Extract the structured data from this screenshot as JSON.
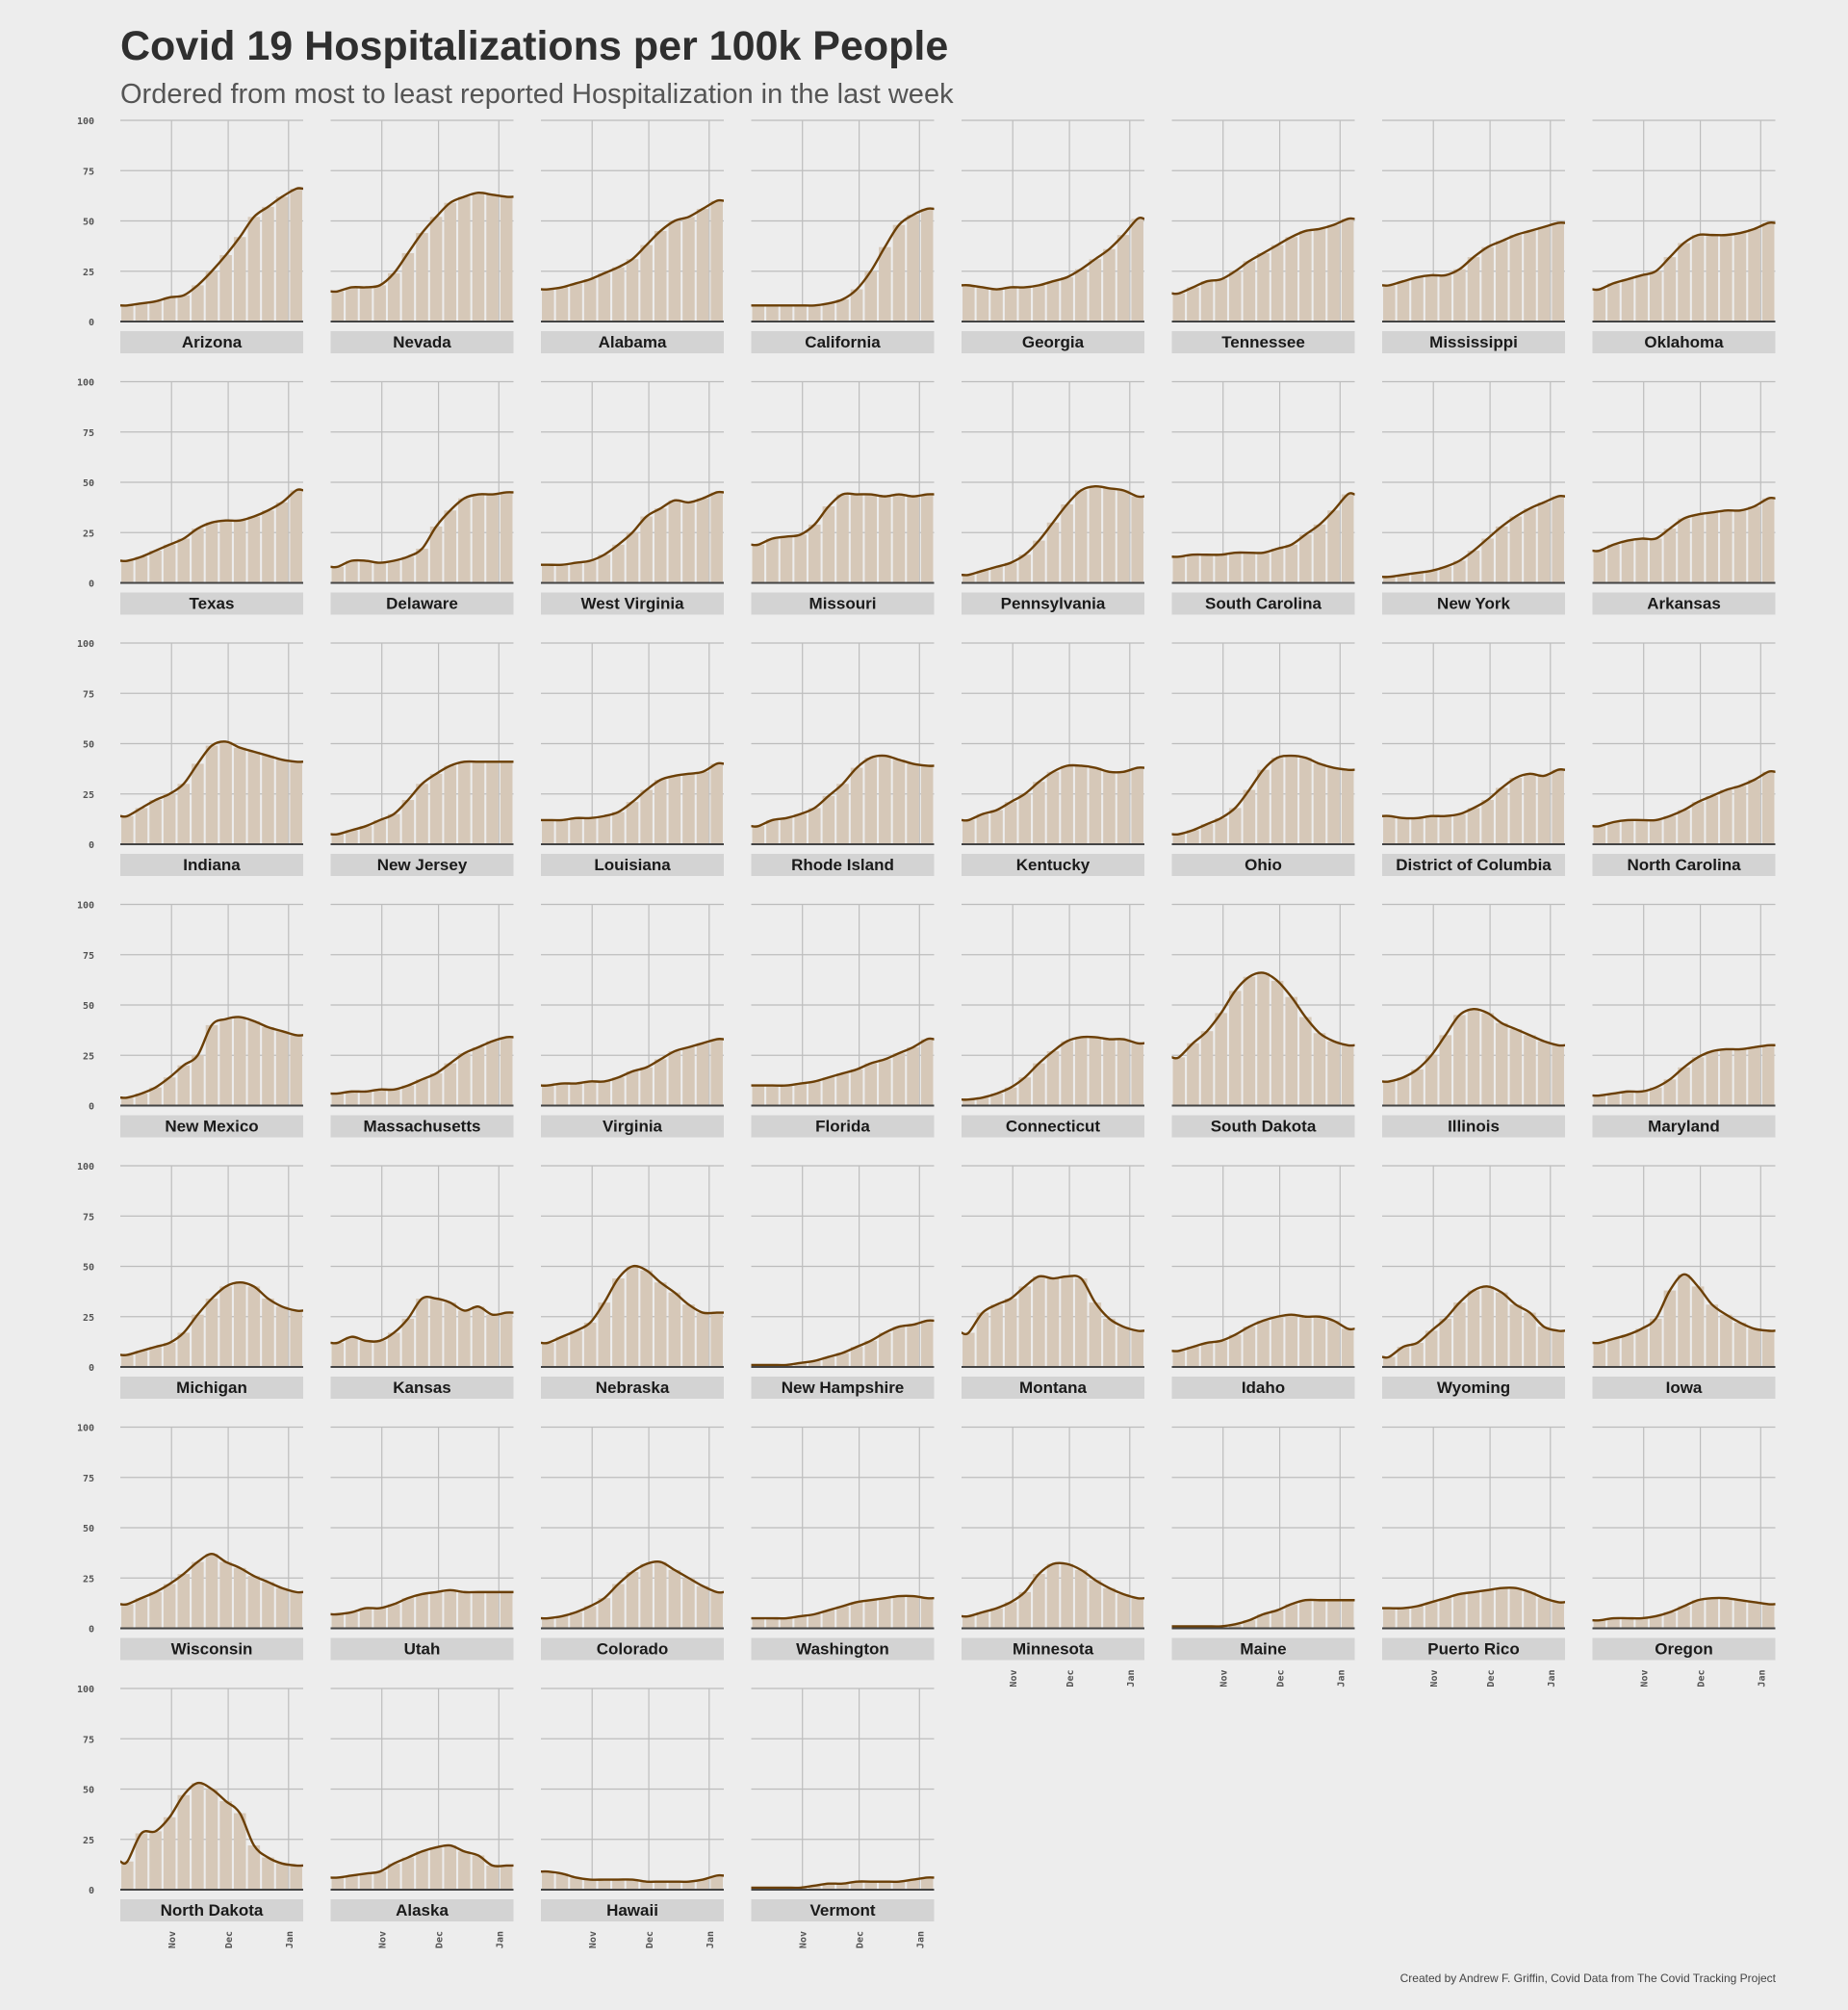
{
  "title": "Covid 19 Hospitalizations per 100k People",
  "subtitle": "Ordered from most to least reported Hospitalization in the last week",
  "caption": "Created by Andrew F. Griffin, Covid Data from The Covid Tracking Project",
  "colors": {
    "background": "#ededed",
    "bar": "#d6c8b8",
    "line": "#6b3f06",
    "grid": "#bdbdbd",
    "strip": "#d3d3d3",
    "axis": "#444444"
  },
  "chart_data": {
    "type": "bar",
    "layout": "facet-wrap",
    "ylim": [
      0,
      100
    ],
    "yticks": [
      0,
      25,
      50,
      75,
      100
    ],
    "xticks": [
      "Nov",
      "Dec",
      "Jan"
    ],
    "x_range": [
      "Oct 8",
      "Jan 10"
    ],
    "series_markers": {
      "bars": "daily hospitalizations per 100k",
      "line": "smoothed trend"
    },
    "facets": [
      {
        "name": "Arizona",
        "values": [
          8,
          9,
          10,
          12,
          13,
          18,
          25,
          33,
          42,
          52,
          57,
          62,
          66
        ]
      },
      {
        "name": "Nevada",
        "values": [
          15,
          17,
          17,
          18,
          24,
          34,
          44,
          52,
          59,
          62,
          64,
          63,
          62
        ]
      },
      {
        "name": "Alabama",
        "values": [
          16,
          17,
          19,
          21,
          24,
          27,
          31,
          38,
          45,
          50,
          52,
          56,
          60
        ]
      },
      {
        "name": "California",
        "values": [
          8,
          8,
          8,
          8,
          8,
          9,
          11,
          16,
          25,
          37,
          48,
          53,
          56
        ]
      },
      {
        "name": "Georgia",
        "values": [
          18,
          17,
          16,
          17,
          17,
          18,
          20,
          22,
          26,
          31,
          36,
          43,
          51
        ]
      },
      {
        "name": "Tennessee",
        "values": [
          14,
          17,
          20,
          21,
          25,
          30,
          34,
          38,
          42,
          45,
          46,
          48,
          51
        ]
      },
      {
        "name": "Mississippi",
        "values": [
          18,
          20,
          22,
          23,
          23,
          26,
          32,
          37,
          40,
          43,
          45,
          47,
          49
        ]
      },
      {
        "name": "Oklahoma",
        "values": [
          16,
          19,
          21,
          23,
          25,
          32,
          39,
          43,
          43,
          43,
          44,
          46,
          49
        ]
      },
      {
        "name": "Texas",
        "values": [
          11,
          13,
          16,
          19,
          22,
          27,
          30,
          31,
          31,
          33,
          36,
          40,
          46
        ]
      },
      {
        "name": "Delaware",
        "values": [
          8,
          11,
          11,
          10,
          11,
          13,
          17,
          28,
          36,
          42,
          44,
          44,
          45
        ]
      },
      {
        "name": "West Virginia",
        "values": [
          9,
          9,
          10,
          11,
          14,
          19,
          25,
          33,
          37,
          41,
          40,
          42,
          45
        ]
      },
      {
        "name": "Missouri",
        "values": [
          19,
          22,
          23,
          24,
          29,
          38,
          44,
          44,
          44,
          43,
          44,
          43,
          44
        ]
      },
      {
        "name": "Pennsylvania",
        "values": [
          4,
          6,
          8,
          10,
          14,
          21,
          30,
          39,
          46,
          48,
          47,
          46,
          43
        ]
      },
      {
        "name": "South Carolina",
        "values": [
          13,
          14,
          14,
          14,
          15,
          15,
          15,
          17,
          19,
          24,
          29,
          36,
          44
        ]
      },
      {
        "name": "New York",
        "values": [
          3,
          4,
          5,
          6,
          8,
          11,
          16,
          22,
          28,
          33,
          37,
          40,
          43
        ]
      },
      {
        "name": "Arkansas",
        "values": [
          16,
          19,
          21,
          22,
          22,
          27,
          32,
          34,
          35,
          36,
          36,
          38,
          42
        ]
      },
      {
        "name": "Indiana",
        "values": [
          14,
          18,
          22,
          25,
          30,
          40,
          49,
          51,
          48,
          46,
          44,
          42,
          41
        ]
      },
      {
        "name": "New Jersey",
        "values": [
          5,
          7,
          9,
          12,
          15,
          22,
          30,
          35,
          39,
          41,
          41,
          41,
          41
        ]
      },
      {
        "name": "Louisiana",
        "values": [
          12,
          12,
          13,
          13,
          14,
          16,
          21,
          27,
          32,
          34,
          35,
          36,
          40
        ]
      },
      {
        "name": "Rhode Island",
        "values": [
          9,
          12,
          13,
          15,
          18,
          24,
          30,
          38,
          43,
          44,
          42,
          40,
          39
        ]
      },
      {
        "name": "Kentucky",
        "values": [
          12,
          15,
          17,
          21,
          25,
          31,
          36,
          39,
          39,
          38,
          36,
          36,
          38
        ]
      },
      {
        "name": "Ohio",
        "values": [
          5,
          7,
          10,
          13,
          18,
          27,
          37,
          43,
          44,
          43,
          40,
          38,
          37
        ]
      },
      {
        "name": "District of Columbia",
        "values": [
          14,
          13,
          13,
          14,
          14,
          15,
          18,
          22,
          28,
          33,
          35,
          34,
          37
        ]
      },
      {
        "name": "North Carolina",
        "values": [
          9,
          11,
          12,
          12,
          12,
          14,
          17,
          21,
          24,
          27,
          29,
          32,
          36
        ]
      },
      {
        "name": "New Mexico",
        "values": [
          4,
          6,
          9,
          14,
          20,
          25,
          40,
          43,
          44,
          42,
          39,
          37,
          35
        ]
      },
      {
        "name": "Massachusetts",
        "values": [
          6,
          7,
          7,
          8,
          8,
          10,
          13,
          16,
          21,
          26,
          29,
          32,
          34
        ]
      },
      {
        "name": "Virginia",
        "values": [
          10,
          11,
          11,
          12,
          12,
          14,
          17,
          19,
          23,
          27,
          29,
          31,
          33
        ]
      },
      {
        "name": "Florida",
        "values": [
          10,
          10,
          10,
          11,
          12,
          14,
          16,
          18,
          21,
          23,
          26,
          29,
          33
        ]
      },
      {
        "name": "Connecticut",
        "values": [
          3,
          4,
          6,
          9,
          14,
          21,
          27,
          32,
          34,
          34,
          33,
          33,
          31
        ]
      },
      {
        "name": "South Dakota",
        "values": [
          24,
          31,
          37,
          46,
          57,
          64,
          66,
          62,
          54,
          44,
          36,
          32,
          30
        ]
      },
      {
        "name": "Illinois",
        "values": [
          12,
          14,
          18,
          25,
          35,
          45,
          48,
          46,
          41,
          38,
          35,
          32,
          30
        ]
      },
      {
        "name": "Maryland",
        "values": [
          5,
          6,
          7,
          7,
          9,
          13,
          19,
          24,
          27,
          28,
          28,
          29,
          30
        ]
      },
      {
        "name": "Michigan",
        "values": [
          6,
          8,
          10,
          12,
          17,
          26,
          34,
          40,
          42,
          40,
          34,
          30,
          28
        ]
      },
      {
        "name": "Kansas",
        "values": [
          12,
          15,
          13,
          13,
          17,
          24,
          34,
          34,
          32,
          28,
          30,
          26,
          27
        ]
      },
      {
        "name": "Nebraska",
        "values": [
          12,
          15,
          18,
          22,
          32,
          44,
          50,
          48,
          42,
          37,
          31,
          27,
          27
        ]
      },
      {
        "name": "New Hampshire",
        "values": [
          1,
          1,
          1,
          2,
          3,
          5,
          7,
          10,
          13,
          17,
          20,
          21,
          23
        ]
      },
      {
        "name": "Montana",
        "values": [
          17,
          27,
          31,
          34,
          40,
          45,
          44,
          45,
          44,
          32,
          24,
          20,
          18
        ]
      },
      {
        "name": "Idaho",
        "values": [
          8,
          10,
          12,
          13,
          16,
          20,
          23,
          25,
          26,
          25,
          25,
          23,
          19
        ]
      },
      {
        "name": "Wyoming",
        "values": [
          5,
          10,
          12,
          18,
          24,
          32,
          38,
          40,
          37,
          31,
          27,
          20,
          18
        ]
      },
      {
        "name": "Iowa",
        "values": [
          12,
          14,
          16,
          19,
          24,
          38,
          46,
          40,
          31,
          26,
          22,
          19,
          18
        ]
      },
      {
        "name": "Wisconsin",
        "values": [
          12,
          15,
          18,
          22,
          27,
          33,
          37,
          33,
          30,
          26,
          23,
          20,
          18
        ]
      },
      {
        "name": "Utah",
        "values": [
          7,
          8,
          10,
          10,
          12,
          15,
          17,
          18,
          19,
          18,
          18,
          18,
          18
        ]
      },
      {
        "name": "Colorado",
        "values": [
          5,
          6,
          8,
          11,
          15,
          22,
          28,
          32,
          33,
          29,
          25,
          21,
          18
        ]
      },
      {
        "name": "Washington",
        "values": [
          5,
          5,
          5,
          6,
          7,
          9,
          11,
          13,
          14,
          15,
          16,
          16,
          15
        ]
      },
      {
        "name": "Minnesota",
        "values": [
          6,
          8,
          10,
          13,
          18,
          27,
          32,
          32,
          29,
          24,
          20,
          17,
          15
        ]
      },
      {
        "name": "Maine",
        "values": [
          1,
          1,
          1,
          1,
          2,
          4,
          7,
          9,
          12,
          14,
          14,
          14,
          14
        ]
      },
      {
        "name": "Puerto Rico",
        "values": [
          10,
          10,
          11,
          13,
          15,
          17,
          18,
          19,
          20,
          20,
          18,
          15,
          13
        ]
      },
      {
        "name": "Oregon",
        "values": [
          4,
          5,
          5,
          5,
          6,
          8,
          11,
          14,
          15,
          15,
          14,
          13,
          12
        ]
      },
      {
        "name": "North Dakota",
        "values": [
          14,
          28,
          29,
          36,
          47,
          53,
          50,
          44,
          38,
          22,
          16,
          13,
          12
        ]
      },
      {
        "name": "Alaska",
        "values": [
          6,
          7,
          8,
          9,
          13,
          16,
          19,
          21,
          22,
          19,
          17,
          12,
          12
        ]
      },
      {
        "name": "Hawaii",
        "values": [
          9,
          8,
          6,
          5,
          5,
          5,
          5,
          4,
          4,
          4,
          4,
          5,
          7
        ]
      },
      {
        "name": "Vermont",
        "values": [
          1,
          1,
          1,
          1,
          2,
          3,
          3,
          4,
          4,
          4,
          4,
          5,
          6
        ]
      }
    ]
  }
}
